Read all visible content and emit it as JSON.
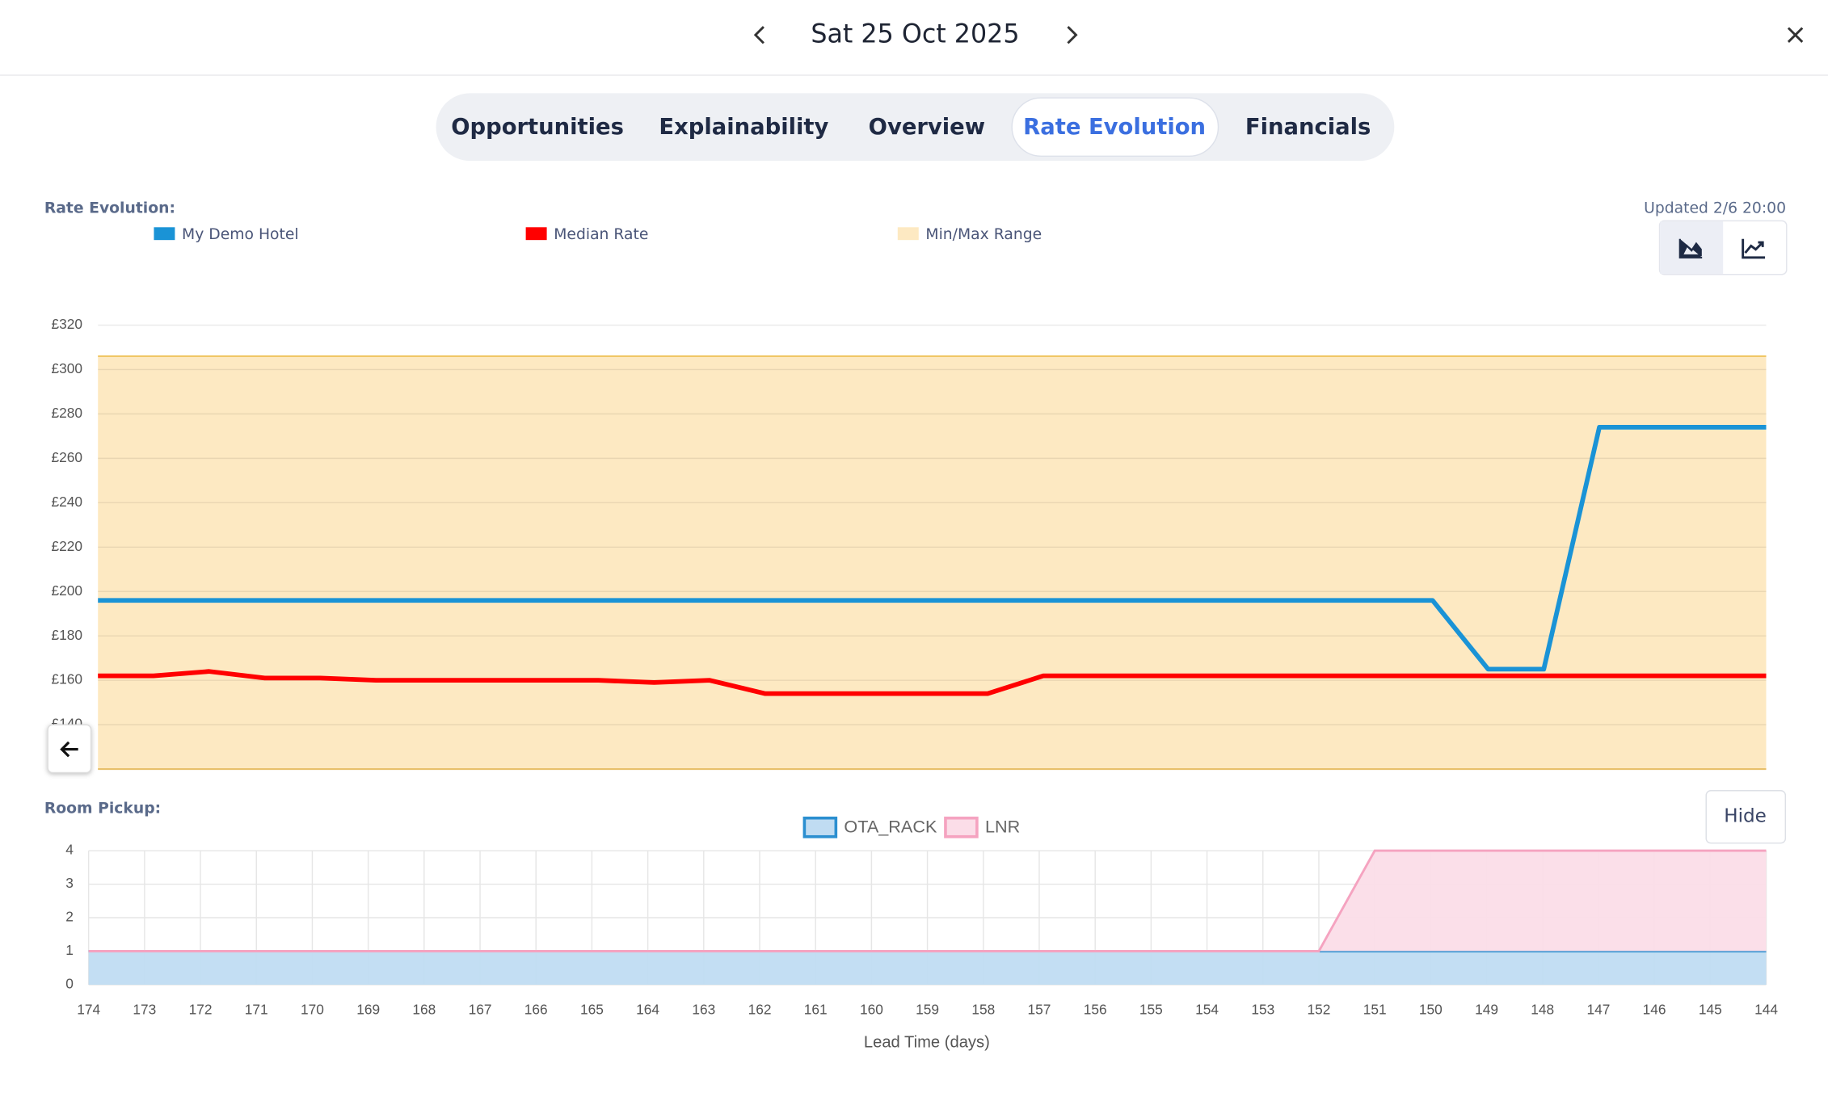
{
  "header": {
    "date": "Sat 25 Oct 2025"
  },
  "tabs": [
    "Opportunities",
    "Explainability",
    "Overview",
    "Rate Evolution",
    "Financials"
  ],
  "active_tab": 3,
  "updated": "Updated 2/6 20:00",
  "hide_button": "Hide",
  "chart_data": [
    {
      "type": "line",
      "title": "Rate Evolution:",
      "x": [
        174,
        173,
        172,
        171,
        170,
        169,
        168,
        167,
        166,
        165,
        164,
        163,
        162,
        161,
        160,
        159,
        158,
        157,
        156,
        155,
        154,
        153,
        152,
        151,
        150,
        149,
        148,
        147,
        146,
        145,
        144
      ],
      "xlim": [
        174,
        144
      ],
      "ylim": [
        120,
        320
      ],
      "yticks": [
        {
          "value": 140,
          "label": "£140"
        },
        {
          "value": 160,
          "label": "£160"
        },
        {
          "value": 180,
          "label": "£180"
        },
        {
          "value": 200,
          "label": "£200"
        },
        {
          "value": 220,
          "label": "£220"
        },
        {
          "value": 240,
          "label": "£240"
        },
        {
          "value": 260,
          "label": "£260"
        },
        {
          "value": 280,
          "label": "£280"
        },
        {
          "value": 300,
          "label": "£300"
        },
        {
          "value": 320,
          "label": "£320"
        }
      ],
      "grid": true,
      "range": {
        "name": "Min/Max Range",
        "color": "#fde9c2",
        "min": [
          120,
          120,
          120,
          120,
          120,
          120,
          120,
          120,
          120,
          120,
          120,
          120,
          120,
          120,
          120,
          120,
          120,
          120,
          120,
          120,
          120,
          120,
          120,
          120,
          120,
          120,
          120,
          120,
          120,
          120,
          120
        ],
        "max": [
          306,
          306,
          306,
          306,
          306,
          306,
          306,
          306,
          306,
          306,
          306,
          306,
          306,
          306,
          306,
          306,
          306,
          306,
          306,
          306,
          306,
          306,
          306,
          306,
          306,
          306,
          306,
          306,
          306,
          306,
          306
        ]
      },
      "series": [
        {
          "name": "My Demo Hotel",
          "color": "#1a93d6",
          "values": [
            196,
            196,
            196,
            196,
            196,
            196,
            196,
            196,
            196,
            196,
            196,
            196,
            196,
            196,
            196,
            196,
            196,
            196,
            196,
            196,
            196,
            196,
            196,
            196,
            196,
            165,
            165,
            274,
            274,
            274,
            274
          ]
        },
        {
          "name": "Median Rate",
          "color": "#ff0000",
          "values": [
            162,
            162,
            164,
            161,
            161,
            160,
            160,
            160,
            160,
            160,
            159,
            160,
            154,
            154,
            154,
            154,
            154,
            162,
            162,
            162,
            162,
            162,
            162,
            162,
            162,
            162,
            162,
            162,
            162,
            162,
            162
          ]
        }
      ]
    },
    {
      "type": "area",
      "title": "Room Pickup:",
      "x_label": "Lead Time (days)",
      "stacked": true,
      "x": [
        174,
        173,
        172,
        171,
        170,
        169,
        168,
        167,
        166,
        165,
        164,
        163,
        162,
        161,
        160,
        159,
        158,
        157,
        156,
        155,
        154,
        153,
        152,
        151,
        150,
        149,
        148,
        147,
        146,
        145,
        144
      ],
      "xlim": [
        174,
        144
      ],
      "xticks": [
        174,
        173,
        172,
        171,
        170,
        169,
        168,
        167,
        166,
        165,
        164,
        163,
        162,
        161,
        160,
        159,
        158,
        157,
        156,
        155,
        154,
        153,
        152,
        151,
        150,
        149,
        148,
        147,
        146,
        145,
        144
      ],
      "ylim": [
        0,
        4
      ],
      "yticks": [
        0,
        1,
        2,
        3,
        4
      ],
      "grid": true,
      "series": [
        {
          "name": "OTA_RACK",
          "color": "#2b8fd0",
          "fill": "#c0dcf2",
          "values": [
            1,
            1,
            1,
            1,
            1,
            1,
            1,
            1,
            1,
            1,
            1,
            1,
            1,
            1,
            1,
            1,
            1,
            1,
            1,
            1,
            1,
            1,
            1,
            1,
            1,
            1,
            1,
            1,
            1,
            1,
            1
          ]
        },
        {
          "name": "LNR",
          "color": "#f5a3c0",
          "fill": "#fbdde8",
          "values": [
            0,
            0,
            0,
            0,
            0,
            0,
            0,
            0,
            0,
            0,
            0,
            0,
            0,
            0,
            0,
            0,
            0,
            0,
            0,
            0,
            0,
            0,
            0,
            3,
            3,
            3,
            3,
            3,
            3,
            3,
            3
          ]
        }
      ]
    }
  ]
}
